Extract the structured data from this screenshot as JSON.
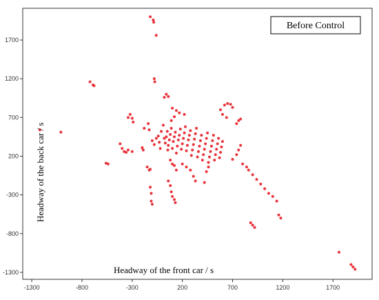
{
  "chart_data": {
    "type": "scatter",
    "title": "",
    "legend": "Before Control",
    "legend_position": "top-right",
    "xlabel": "Headway of the front car / s",
    "ylabel": "Headway of the back car / s",
    "xlim": [
      -1390,
      2090
    ],
    "ylim": [
      -1390,
      2110
    ],
    "x_ticks": [
      -1300,
      -800,
      -300,
      200,
      700,
      1200,
      1700
    ],
    "y_ticks": [
      -1300,
      -800,
      -300,
      200,
      700,
      1200,
      1700
    ],
    "grid": false,
    "point_color": "#e8333b",
    "series": [
      {
        "values": [
          [
            -120,
            2000
          ],
          [
            -90,
            1960
          ],
          [
            -85,
            1930
          ],
          [
            -60,
            1760
          ],
          [
            -720,
            1160
          ],
          [
            -690,
            1120
          ],
          [
            -680,
            1110
          ],
          [
            -80,
            1200
          ],
          [
            -75,
            1160
          ],
          [
            -1220,
            540
          ],
          [
            -1010,
            510
          ],
          [
            -560,
            110
          ],
          [
            -540,
            100
          ],
          [
            -420,
            360
          ],
          [
            -400,
            300
          ],
          [
            -380,
            260
          ],
          [
            -360,
            250
          ],
          [
            -340,
            280
          ],
          [
            -300,
            260
          ],
          [
            -340,
            700
          ],
          [
            -320,
            740
          ],
          [
            -300,
            690
          ],
          [
            -290,
            640
          ],
          [
            -200,
            310
          ],
          [
            -190,
            280
          ],
          [
            -180,
            560
          ],
          [
            -140,
            620
          ],
          [
            -130,
            540
          ],
          [
            -150,
            60
          ],
          [
            -130,
            20
          ],
          [
            -120,
            30
          ],
          [
            -120,
            -200
          ],
          [
            -110,
            -280
          ],
          [
            -110,
            -380
          ],
          [
            -100,
            -420
          ],
          [
            20,
            960
          ],
          [
            40,
            1000
          ],
          [
            60,
            970
          ],
          [
            100,
            820
          ],
          [
            140,
            790
          ],
          [
            170,
            760
          ],
          [
            220,
            740
          ],
          [
            90,
            660
          ],
          [
            120,
            710
          ],
          [
            -100,
            400
          ],
          [
            -80,
            350
          ],
          [
            -60,
            430
          ],
          [
            -40,
            460
          ],
          [
            -30,
            380
          ],
          [
            -20,
            300
          ],
          [
            -10,
            520
          ],
          [
            10,
            600
          ],
          [
            20,
            430
          ],
          [
            30,
            370
          ],
          [
            40,
            450
          ],
          [
            50,
            520
          ],
          [
            55,
            280
          ],
          [
            60,
            340
          ],
          [
            70,
            410
          ],
          [
            80,
            480
          ],
          [
            90,
            560
          ],
          [
            100,
            300
          ],
          [
            110,
            390
          ],
          [
            120,
            450
          ],
          [
            130,
            510
          ],
          [
            140,
            240
          ],
          [
            150,
            330
          ],
          [
            160,
            410
          ],
          [
            170,
            470
          ],
          [
            180,
            550
          ],
          [
            190,
            290
          ],
          [
            200,
            360
          ],
          [
            210,
            430
          ],
          [
            220,
            500
          ],
          [
            230,
            580
          ],
          [
            240,
            270
          ],
          [
            250,
            340
          ],
          [
            260,
            410
          ],
          [
            270,
            470
          ],
          [
            280,
            530
          ],
          [
            290,
            210
          ],
          [
            300,
            280
          ],
          [
            310,
            350
          ],
          [
            320,
            420
          ],
          [
            330,
            490
          ],
          [
            340,
            560
          ],
          [
            350,
            190
          ],
          [
            360,
            260
          ],
          [
            370,
            330
          ],
          [
            380,
            400
          ],
          [
            390,
            470
          ],
          [
            400,
            150
          ],
          [
            410,
            220
          ],
          [
            420,
            290
          ],
          [
            430,
            360
          ],
          [
            440,
            430
          ],
          [
            450,
            500
          ],
          [
            460,
            120
          ],
          [
            470,
            190
          ],
          [
            480,
            260
          ],
          [
            490,
            330
          ],
          [
            500,
            400
          ],
          [
            510,
            470
          ],
          [
            520,
            150
          ],
          [
            530,
            220
          ],
          [
            540,
            290
          ],
          [
            550,
            360
          ],
          [
            560,
            430
          ],
          [
            570,
            180
          ],
          [
            580,
            250
          ],
          [
            590,
            320
          ],
          [
            600,
            390
          ],
          [
            80,
            150
          ],
          [
            100,
            100
          ],
          [
            120,
            80
          ],
          [
            140,
            20
          ],
          [
            60,
            -120
          ],
          [
            80,
            -180
          ],
          [
            90,
            -260
          ],
          [
            100,
            -320
          ],
          [
            120,
            -360
          ],
          [
            130,
            -400
          ],
          [
            200,
            100
          ],
          [
            240,
            60
          ],
          [
            280,
            20
          ],
          [
            310,
            -60
          ],
          [
            330,
            -120
          ],
          [
            420,
            -140
          ],
          [
            440,
            0
          ],
          [
            460,
            60
          ],
          [
            580,
            800
          ],
          [
            620,
            860
          ],
          [
            650,
            880
          ],
          [
            680,
            870
          ],
          [
            700,
            830
          ],
          [
            600,
            740
          ],
          [
            640,
            700
          ],
          [
            700,
            160
          ],
          [
            740,
            220
          ],
          [
            760,
            280
          ],
          [
            780,
            340
          ],
          [
            800,
            100
          ],
          [
            840,
            60
          ],
          [
            860,
            20
          ],
          [
            900,
            -40
          ],
          [
            940,
            -100
          ],
          [
            980,
            -160
          ],
          [
            1020,
            -220
          ],
          [
            1060,
            -280
          ],
          [
            1100,
            -320
          ],
          [
            1140,
            -380
          ],
          [
            740,
            620
          ],
          [
            760,
            660
          ],
          [
            780,
            680
          ],
          [
            880,
            -660
          ],
          [
            900,
            -690
          ],
          [
            920,
            -720
          ],
          [
            1160,
            -560
          ],
          [
            1180,
            -600
          ],
          [
            1760,
            -1040
          ],
          [
            1880,
            -1200
          ],
          [
            1900,
            -1230
          ],
          [
            1920,
            -1260
          ]
        ]
      }
    ]
  }
}
